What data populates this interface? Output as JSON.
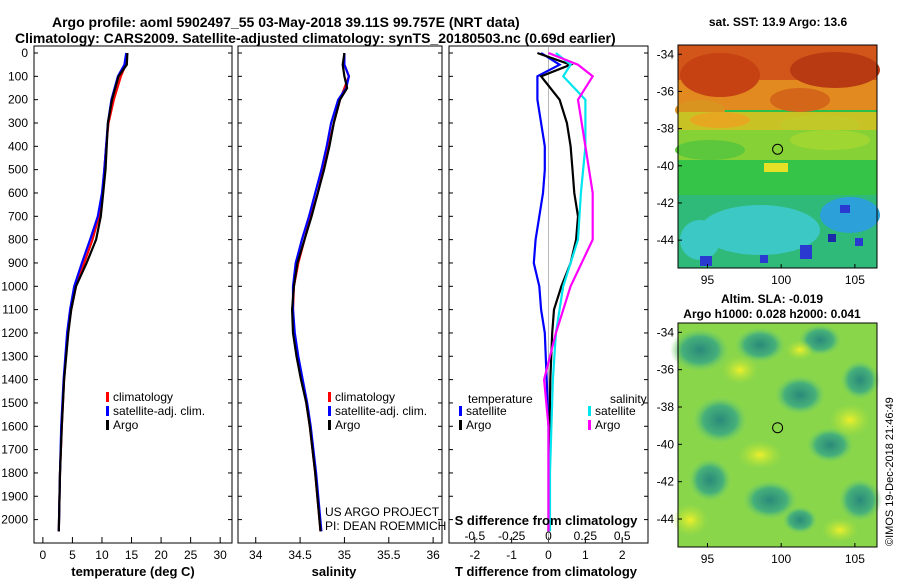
{
  "header": {
    "line1": "Argo profile: aoml 5902497_55 03-May-2018 39.11S 99.757E (NRT data)",
    "line2": "Climatology: CARS2009. Satellite-adjusted climatology: synTS_20180503.nc (0.69d earlier)"
  },
  "depth_ticks": [
    0,
    100,
    200,
    300,
    400,
    500,
    600,
    700,
    800,
    900,
    1000,
    1100,
    1200,
    1300,
    1400,
    1500,
    1600,
    1700,
    1800,
    1900,
    2000
  ],
  "colors": {
    "climatology": "#ff0000",
    "satellite": "#0000ff",
    "argo": "#000000",
    "sal_satellite": "#00e5ee",
    "sal_argo": "#ff00ff"
  },
  "chart_data": [
    {
      "type": "line",
      "name": "temperature-profile",
      "xlabel": "temperature (deg C)",
      "ylabel": "depth (dbar)",
      "xlim": [
        -1.5,
        32
      ],
      "ylim": [
        2050,
        0
      ],
      "xticks": [
        0,
        5,
        10,
        15,
        20,
        25,
        30
      ],
      "legend": [
        "climatology",
        "satellite-adj. clim.",
        "Argo"
      ],
      "series": [
        {
          "name": "climatology",
          "color": "#ff0000",
          "depth": [
            0,
            50,
            100,
            200,
            300,
            400,
            500,
            600,
            700,
            800,
            900,
            1000,
            1100,
            1200,
            1400,
            1600,
            1800,
            2050
          ],
          "values": [
            14.2,
            14.0,
            13.2,
            12.0,
            11.1,
            10.7,
            10.4,
            10.1,
            9.5,
            8.4,
            7.0,
            5.6,
            4.8,
            4.2,
            3.6,
            3.2,
            2.9,
            2.7
          ]
        },
        {
          "name": "satellite-adj. clim.",
          "color": "#0000ff",
          "depth": [
            0,
            50,
            100,
            200,
            300,
            400,
            500,
            600,
            700,
            800,
            900,
            1000,
            1100,
            1200,
            1400,
            1600,
            1800,
            2050
          ],
          "values": [
            14.1,
            13.8,
            12.7,
            11.6,
            11.0,
            10.7,
            10.4,
            10.0,
            9.3,
            8.0,
            6.6,
            5.3,
            4.6,
            4.1,
            3.5,
            3.1,
            2.9,
            2.7
          ]
        },
        {
          "name": "Argo",
          "color": "#000000",
          "depth": [
            0,
            50,
            100,
            200,
            300,
            400,
            500,
            600,
            700,
            800,
            900,
            1000,
            1100,
            1200,
            1400,
            1600,
            1800,
            2050
          ],
          "values": [
            14.3,
            14.2,
            12.8,
            11.7,
            11.0,
            10.8,
            10.6,
            10.2,
            9.8,
            9.0,
            7.4,
            5.6,
            4.8,
            4.3,
            3.6,
            3.2,
            2.9,
            2.7
          ]
        }
      ]
    },
    {
      "type": "line",
      "name": "salinity-profile",
      "xlabel": "salinity",
      "xlim": [
        33.8,
        36.1
      ],
      "ylim": [
        2050,
        0
      ],
      "xticks": [
        34,
        34.5,
        35,
        35.5,
        36
      ],
      "xtick_labels": [
        "34",
        "34.5",
        "35",
        "35.5",
        "36"
      ],
      "legend": [
        "climatology",
        "satellite-adj. clim.",
        "Argo"
      ],
      "annotation": [
        "US ARGO PROJECT",
        "PI: DEAN ROEMMICH"
      ],
      "series": [
        {
          "name": "climatology",
          "color": "#ff0000",
          "depth": [
            0,
            50,
            100,
            150,
            200,
            300,
            400,
            500,
            600,
            700,
            800,
            900,
            1000,
            1100,
            1200,
            1300,
            1400,
            1500,
            1600,
            1800,
            2050
          ],
          "values": [
            35.0,
            35.0,
            35.05,
            35.0,
            34.95,
            34.88,
            34.82,
            34.76,
            34.7,
            34.62,
            34.55,
            34.48,
            34.43,
            34.42,
            34.43,
            34.47,
            34.52,
            34.57,
            34.61,
            34.67,
            34.73
          ]
        },
        {
          "name": "satellite-adj. clim.",
          "color": "#0000ff",
          "depth": [
            0,
            50,
            100,
            150,
            200,
            300,
            400,
            500,
            600,
            700,
            800,
            900,
            1000,
            1100,
            1200,
            1300,
            1400,
            1500,
            1600,
            1800,
            2050
          ],
          "values": [
            35.0,
            35.0,
            35.05,
            35.02,
            34.93,
            34.85,
            34.8,
            34.74,
            34.67,
            34.6,
            34.52,
            34.45,
            34.42,
            34.42,
            34.44,
            34.48,
            34.53,
            34.58,
            34.62,
            34.68,
            34.74
          ]
        },
        {
          "name": "Argo",
          "color": "#000000",
          "depth": [
            0,
            50,
            100,
            150,
            200,
            300,
            400,
            500,
            600,
            700,
            800,
            900,
            1000,
            1100,
            1200,
            1300,
            1400,
            1500,
            1600,
            1800,
            2050
          ],
          "values": [
            35.0,
            34.98,
            35.0,
            35.03,
            34.95,
            34.88,
            34.83,
            34.77,
            34.7,
            34.63,
            34.55,
            34.47,
            34.43,
            34.41,
            34.42,
            34.46,
            34.51,
            34.57,
            34.61,
            34.67,
            34.73
          ]
        }
      ]
    },
    {
      "type": "line",
      "name": "difference-profile",
      "xlabel": "T difference from climatology",
      "xlabel_top": "S difference from climatology",
      "xlim": [
        -2.7,
        2.7
      ],
      "ylim": [
        2050,
        0
      ],
      "xticks": [
        -2,
        -1,
        0,
        1,
        2
      ],
      "s_ticks": [
        -0.5,
        -0.25,
        0,
        0.25,
        0.5
      ],
      "s_tick_labels": [
        "-0.5",
        "-0.25",
        "0",
        "0.25",
        "0.5"
      ],
      "legend_left_title": "temperature",
      "legend_right_title": "salinity",
      "legend_left": [
        "satellite",
        "Argo"
      ],
      "legend_right": [
        "satellite",
        "Argo"
      ],
      "series": [
        {
          "name": "T satellite",
          "color": "#0000ff",
          "depth": [
            0,
            50,
            100,
            200,
            300,
            400,
            500,
            600,
            700,
            800,
            900,
            1000,
            1100,
            1200,
            1400,
            1600,
            1800,
            2050
          ],
          "values": [
            -0.2,
            0.3,
            -0.3,
            -0.3,
            -0.2,
            -0.1,
            -0.1,
            -0.15,
            -0.25,
            -0.35,
            -0.4,
            -0.25,
            -0.2,
            -0.1,
            -0.05,
            0,
            0,
            0
          ]
        },
        {
          "name": "T Argo",
          "color": "#000000",
          "depth": [
            0,
            50,
            100,
            200,
            300,
            400,
            500,
            600,
            700,
            800,
            900,
            1000,
            1100,
            1200,
            1400,
            1600,
            1800,
            2050
          ],
          "values": [
            -0.3,
            0.6,
            -0.2,
            0.3,
            0.5,
            0.6,
            0.65,
            0.7,
            0.8,
            0.75,
            0.6,
            0.35,
            0.15,
            0.1,
            0.05,
            0.03,
            0.02,
            0.0
          ]
        },
        {
          "name": "S satellite",
          "color": "#00e5ee",
          "depth": [
            0,
            50,
            100,
            200,
            400,
            600,
            800,
            1000,
            1200,
            1400,
            1600,
            1800,
            2050
          ],
          "values": [
            0.05,
            0.15,
            0.1,
            0.25,
            0.25,
            0.22,
            0.2,
            0.1,
            0.05,
            0.03,
            0.02,
            0.01,
            0.01
          ]
        },
        {
          "name": "S Argo",
          "color": "#ff00ff",
          "depth": [
            0,
            50,
            100,
            200,
            400,
            600,
            800,
            1000,
            1200,
            1400,
            1600,
            1800,
            2050
          ],
          "values": [
            0.0,
            0.2,
            0.3,
            0.2,
            0.25,
            0.3,
            0.3,
            0.15,
            0.05,
            -0.03,
            0.0,
            0.0,
            0.0
          ]
        }
      ]
    },
    {
      "type": "heatmap",
      "name": "sst-map",
      "title": "sat. SST: 13.9 Argo: 13.6",
      "xlim": [
        93,
        106.5
      ],
      "ylim": [
        -45.5,
        -33.5
      ],
      "xticks": [
        95,
        100,
        105
      ],
      "yticks": [
        -34,
        -36,
        -38,
        -40,
        -42,
        -44
      ],
      "marker": {
        "lon": 99.757,
        "lat": -39.11
      }
    },
    {
      "type": "heatmap",
      "name": "sla-map",
      "title": "Altim. SLA: -0.019",
      "subtitle": "Argo h1000: 0.028 h2000: 0.041",
      "xlim": [
        93,
        106.5
      ],
      "ylim": [
        -45.5,
        -33.5
      ],
      "xticks": [
        95,
        100,
        105
      ],
      "yticks": [
        -34,
        -36,
        -38,
        -40,
        -42,
        -44
      ],
      "marker": {
        "lon": 99.757,
        "lat": -39.11
      }
    }
  ],
  "credit": "©IMOS 19-Dec-2018 21:46:49"
}
